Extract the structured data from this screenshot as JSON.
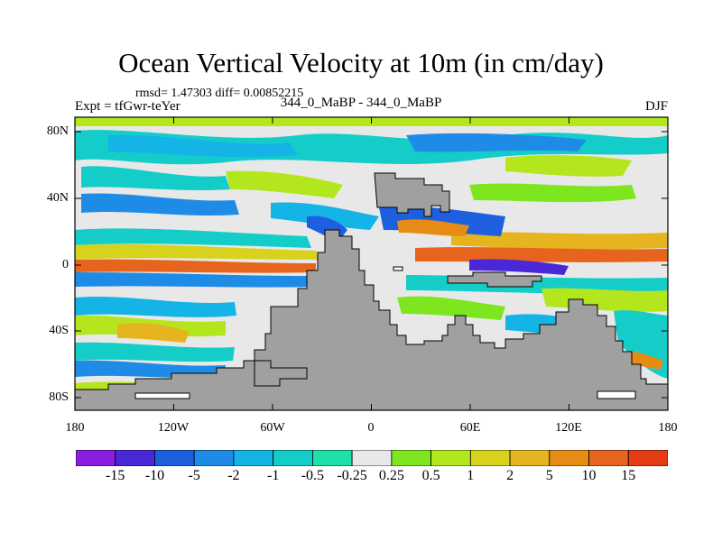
{
  "figure": {
    "title": "Ocean Vertical Velocity at 10m (in cm/day)",
    "stats": "rmsd= 1.47303 diff= 0.00852215",
    "experiment": "Expt = tfGwr-teYer",
    "case_label": "344_0_MaBP - 344_0_MaBP",
    "season": "DJF"
  },
  "axes": {
    "lat_ticks": [
      "80N",
      "40N",
      "0",
      "40S",
      "80S"
    ],
    "lon_ticks": [
      "180",
      "120W",
      "60W",
      "0",
      "60E",
      "120E",
      "180"
    ]
  },
  "colorbar": {
    "labels": [
      "-15",
      "-10",
      "-5",
      "-2",
      "-1",
      "-0.5",
      "-0.25",
      "0.25",
      "0.5",
      "1",
      "2",
      "5",
      "10",
      "15"
    ],
    "colors": [
      "#8a1ee0",
      "#4a28d8",
      "#1e5fe0",
      "#1e8ce6",
      "#14b4e6",
      "#14cdc8",
      "#1ee1aa",
      "#e8e8e8",
      "#7ee61e",
      "#b4e61e",
      "#d7d21e",
      "#e6b41e",
      "#e68c14",
      "#e6641e",
      "#e63c14"
    ]
  },
  "land_color": "#a0a0a0"
}
